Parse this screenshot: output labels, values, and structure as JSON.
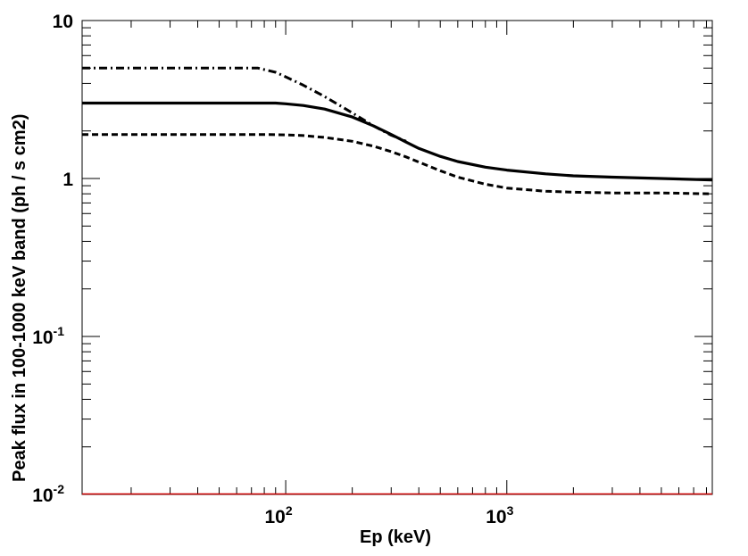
{
  "chart_data": {
    "type": "line",
    "title": "",
    "xlabel": "Ep (keV)",
    "ylabel": "Peak flux in 100-1000 keV band (ph / s cm2)",
    "x_scale": "log",
    "y_scale": "log",
    "xlim": [
      12,
      8500
    ],
    "ylim": [
      0.01,
      10
    ],
    "grid": false,
    "legend": "none",
    "x_tick_labels": [
      {
        "value": 100,
        "base": "10",
        "exp": "2"
      },
      {
        "value": 1000,
        "base": "10",
        "exp": "3"
      }
    ],
    "y_tick_labels": [
      {
        "value": 10,
        "base": "10",
        "exp": ""
      },
      {
        "value": 1,
        "base": "1",
        "exp": ""
      },
      {
        "value": 0.1,
        "base": "10",
        "exp": "-1"
      },
      {
        "value": 0.01,
        "base": "10",
        "exp": "-2"
      }
    ],
    "baseline": {
      "value": 0.01,
      "color": "#cc0000"
    },
    "series": [
      {
        "style": "solid",
        "color": "#000000",
        "x": [
          12,
          20,
          40,
          60,
          80,
          90,
          100,
          120,
          150,
          200,
          250,
          300,
          350,
          400,
          500,
          600,
          800,
          1000,
          1500,
          2000,
          3000,
          5000,
          8500
        ],
        "y": [
          3.0,
          3.0,
          3.0,
          3.0,
          3.0,
          3.0,
          2.97,
          2.9,
          2.75,
          2.45,
          2.15,
          1.9,
          1.7,
          1.55,
          1.38,
          1.28,
          1.18,
          1.13,
          1.07,
          1.04,
          1.02,
          1.0,
          0.98
        ]
      },
      {
        "style": "dashdot",
        "color": "#000000",
        "x": [
          12,
          20,
          40,
          60,
          75,
          90,
          100,
          120,
          150,
          200,
          250,
          300,
          350
        ],
        "y": [
          5.0,
          5.0,
          5.0,
          5.0,
          5.0,
          4.7,
          4.4,
          3.9,
          3.3,
          2.6,
          2.15,
          1.88,
          1.72
        ]
      },
      {
        "style": "dashed",
        "color": "#000000",
        "x": [
          12,
          20,
          40,
          60,
          80,
          100,
          120,
          150,
          200,
          250,
          300,
          350,
          400,
          500,
          600,
          800,
          1000,
          1500,
          2000,
          3000,
          5000,
          8500
        ],
        "y": [
          1.9,
          1.9,
          1.9,
          1.9,
          1.9,
          1.89,
          1.87,
          1.82,
          1.72,
          1.6,
          1.48,
          1.37,
          1.27,
          1.12,
          1.02,
          0.92,
          0.87,
          0.83,
          0.82,
          0.81,
          0.81,
          0.8
        ]
      }
    ]
  }
}
